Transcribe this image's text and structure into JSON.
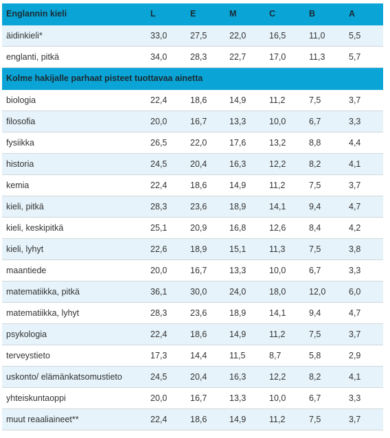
{
  "table": {
    "header": {
      "title": "Englannin kieli",
      "columns": [
        "L",
        "E",
        "M",
        "C",
        "B",
        "A"
      ]
    },
    "rows_group1": [
      {
        "subject": "äidinkieli*",
        "values": [
          "33,0",
          "27,5",
          "22,0",
          "16,5",
          "11,0",
          "5,5"
        ]
      },
      {
        "subject": "englanti, pitkä",
        "values": [
          "34,0",
          "28,3",
          "22,7",
          "17,0",
          "11,3",
          "5,7"
        ]
      }
    ],
    "section_title": "Kolme hakijalle parhaat pisteet tuottavaa ainetta",
    "rows_group2": [
      {
        "subject": "biologia",
        "values": [
          "22,4",
          "18,6",
          "14,9",
          "11,2",
          "7,5",
          "3,7"
        ]
      },
      {
        "subject": "filosofia",
        "values": [
          "20,0",
          "16,7",
          "13,3",
          "10,0",
          "6,7",
          "3,3"
        ]
      },
      {
        "subject": "fysiikka",
        "values": [
          "26,5",
          "22,0",
          "17,6",
          "13,2",
          "8,8",
          "4,4"
        ]
      },
      {
        "subject": "historia",
        "values": [
          "24,5",
          "20,4",
          "16,3",
          "12,2",
          "8,2",
          "4,1"
        ]
      },
      {
        "subject": "kemia",
        "values": [
          "22,4",
          "18,6",
          "14,9",
          "11,2",
          "7,5",
          "3,7"
        ]
      },
      {
        "subject": "kieli, pitkä",
        "values": [
          "28,3",
          "23,6",
          "18,9",
          "14,1",
          "9,4",
          "4,7"
        ]
      },
      {
        "subject": "kieli, keskipitkä",
        "values": [
          "25,1",
          "20,9",
          "16,8",
          "12,6",
          "8,4",
          "4,2"
        ]
      },
      {
        "subject": "kieli, lyhyt",
        "values": [
          "22,6",
          "18,9",
          "15,1",
          "11,3",
          "7,5",
          "3,8"
        ]
      },
      {
        "subject": "maantiede",
        "values": [
          "20,0",
          "16,7",
          "13,3",
          "10,0",
          "6,7",
          "3,3"
        ]
      },
      {
        "subject": "matematiikka, pitkä",
        "values": [
          "36,1",
          "30,0",
          "24,0",
          "18,0",
          "12,0",
          "6,0"
        ]
      },
      {
        "subject": "matematiikka, lyhyt",
        "values": [
          "28,3",
          "23,6",
          "18,9",
          "14,1",
          "9,4",
          "4,7"
        ]
      },
      {
        "subject": "psykologia",
        "values": [
          "22,4",
          "18,6",
          "14,9",
          "11,2",
          "7,5",
          "3,7"
        ]
      },
      {
        "subject": "terveystieto",
        "values": [
          "17,3",
          "14,4",
          "11,5",
          "8,7",
          "5,8",
          "2,9"
        ]
      },
      {
        "subject": "uskonto/ elämänkatsomustieto",
        "values": [
          "24,5",
          "20,4",
          "16,3",
          "12,2",
          "8,2",
          "4,1"
        ]
      },
      {
        "subject": "yhteiskuntaoppi",
        "values": [
          "20,0",
          "16,7",
          "13,3",
          "10,0",
          "6,7",
          "3,3"
        ]
      },
      {
        "subject": "muut reaaliaineet**",
        "values": [
          "22,4",
          "18,6",
          "14,9",
          "11,2",
          "7,5",
          "3,7"
        ]
      }
    ]
  },
  "colors": {
    "section_bg": "#0aa5d6",
    "alt_row_bg": "#e6f3fa",
    "row_bg": "#ffffff",
    "border": "#cfd8dc"
  }
}
